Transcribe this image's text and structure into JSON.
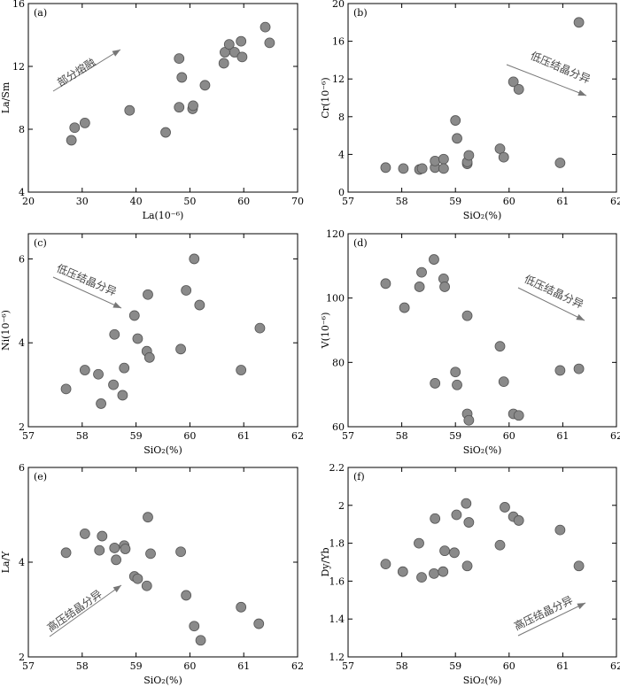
{
  "chart_data": [
    {
      "panel": "(a)",
      "type": "scatter",
      "xlabel": "La(10⁻⁶)",
      "ylabel": "La/Sm",
      "xlim": [
        20,
        70
      ],
      "ylim": [
        4,
        16
      ],
      "xticks": [
        20,
        30,
        40,
        50,
        60,
        70
      ],
      "yticks": [
        4,
        8,
        12,
        16
      ],
      "x": [
        28.0,
        28.6,
        30.5,
        38.8,
        45.5,
        48.0,
        48.0,
        48.5,
        50.5,
        50.6,
        52.8,
        56.3,
        56.5,
        57.3,
        58.3,
        59.5,
        59.7,
        64.0,
        64.8
      ],
      "y": [
        7.3,
        8.1,
        8.4,
        9.2,
        7.8,
        9.4,
        12.5,
        11.3,
        9.3,
        9.5,
        10.8,
        12.2,
        12.9,
        13.4,
        12.9,
        13.6,
        12.6,
        14.5,
        13.5
      ],
      "annotation": {
        "text": "部分熔融",
        "direction": "up-right"
      }
    },
    {
      "panel": "(b)",
      "type": "scatter",
      "xlabel": "SiO₂(%)",
      "ylabel": "Cr(10⁻⁶)",
      "xlim": [
        57,
        62
      ],
      "ylim": [
        0,
        20
      ],
      "xticks": [
        57,
        58,
        59,
        60,
        61,
        62
      ],
      "yticks": [
        0,
        4,
        8,
        12,
        16,
        20
      ],
      "x": [
        57.7,
        58.03,
        58.33,
        58.38,
        58.62,
        58.62,
        58.78,
        58.78,
        59.0,
        59.03,
        59.22,
        59.22,
        59.25,
        59.83,
        59.9,
        60.08,
        60.18,
        60.95,
        61.3
      ],
      "y": [
        2.6,
        2.5,
        2.4,
        2.5,
        2.6,
        3.3,
        3.5,
        2.5,
        7.6,
        5.7,
        3.0,
        3.2,
        3.9,
        4.6,
        3.7,
        11.7,
        10.9,
        3.1,
        18.0
      ],
      "annotation": {
        "text": "低压结晶分异",
        "direction": "down-right"
      }
    },
    {
      "panel": "(c)",
      "type": "scatter",
      "xlabel": "SiO₂(%)",
      "ylabel": "Ni(10⁻⁶)",
      "xlim": [
        57,
        62
      ],
      "ylim": [
        2,
        6.6
      ],
      "xticks": [
        57,
        58,
        59,
        60,
        61,
        62
      ],
      "yticks": [
        2,
        4,
        6
      ],
      "x": [
        57.7,
        58.05,
        58.3,
        58.35,
        58.58,
        58.6,
        58.75,
        58.78,
        58.97,
        59.03,
        59.2,
        59.22,
        59.25,
        59.83,
        59.93,
        60.08,
        60.18,
        60.95,
        61.3
      ],
      "y": [
        2.9,
        3.35,
        3.25,
        2.55,
        3.0,
        4.2,
        2.75,
        3.4,
        4.65,
        4.1,
        3.8,
        5.15,
        3.65,
        3.85,
        5.25,
        6.0,
        4.9,
        3.35,
        4.35
      ],
      "annotation": {
        "text": "低压结晶分异",
        "direction": "down-right"
      }
    },
    {
      "panel": "(d)",
      "type": "scatter",
      "xlabel": "SiO₂(%)",
      "ylabel": "V(10⁻⁶)",
      "xlim": [
        57,
        62
      ],
      "ylim": [
        60,
        120
      ],
      "xticks": [
        57,
        58,
        59,
        60,
        61,
        62
      ],
      "yticks": [
        60,
        80,
        100,
        120
      ],
      "x": [
        57.7,
        58.05,
        58.33,
        58.37,
        58.6,
        58.62,
        58.78,
        58.8,
        59.0,
        59.03,
        59.22,
        59.22,
        59.25,
        59.83,
        59.9,
        60.08,
        60.18,
        60.95,
        61.3
      ],
      "y": [
        104.5,
        97.0,
        103.5,
        108.0,
        112.0,
        73.5,
        106.0,
        103.5,
        77.0,
        73.0,
        94.5,
        64.0,
        62.0,
        85.0,
        74.0,
        64.0,
        63.5,
        77.5,
        78.0
      ],
      "annotation": {
        "text": "低压结晶分异",
        "direction": "down-right"
      }
    },
    {
      "panel": "(e)",
      "type": "scatter",
      "xlabel": "SiO₂(%)",
      "ylabel": "La/Y",
      "xlim": [
        57,
        62
      ],
      "ylim": [
        2,
        6
      ],
      "xticks": [
        57,
        58,
        59,
        60,
        61,
        62
      ],
      "yticks": [
        2,
        4,
        6
      ],
      "x": [
        57.7,
        58.05,
        58.32,
        58.37,
        58.6,
        58.63,
        58.78,
        58.8,
        58.97,
        59.03,
        59.2,
        59.22,
        59.27,
        59.83,
        59.93,
        60.08,
        60.2,
        60.95,
        61.28
      ],
      "y": [
        4.2,
        4.6,
        4.25,
        4.55,
        4.3,
        4.05,
        4.35,
        4.28,
        3.7,
        3.65,
        3.5,
        4.95,
        4.18,
        4.22,
        3.3,
        2.65,
        2.35,
        3.05,
        2.7
      ],
      "annotation": {
        "text": "高压结晶分异",
        "direction": "up-right"
      }
    },
    {
      "panel": "(f)",
      "type": "scatter",
      "xlabel": "SiO₂(%)",
      "ylabel": "Dy/Yb",
      "xlim": [
        57,
        62
      ],
      "ylim": [
        1.2,
        2.2
      ],
      "xticks": [
        57,
        58,
        59,
        60,
        61,
        62
      ],
      "yticks": [
        1.2,
        1.4,
        1.6,
        1.8,
        2.0,
        2.2
      ],
      "x": [
        57.7,
        58.02,
        58.32,
        58.37,
        58.6,
        58.62,
        58.77,
        58.8,
        58.98,
        59.02,
        59.2,
        59.22,
        59.25,
        59.83,
        59.92,
        60.08,
        60.18,
        60.95,
        61.3
      ],
      "y": [
        1.69,
        1.65,
        1.8,
        1.62,
        1.64,
        1.93,
        1.65,
        1.76,
        1.75,
        1.95,
        2.01,
        1.68,
        1.91,
        1.79,
        1.99,
        1.94,
        1.92,
        1.87,
        1.68
      ],
      "annotation": {
        "text": "高压结晶分异",
        "direction": "up-right"
      }
    }
  ]
}
